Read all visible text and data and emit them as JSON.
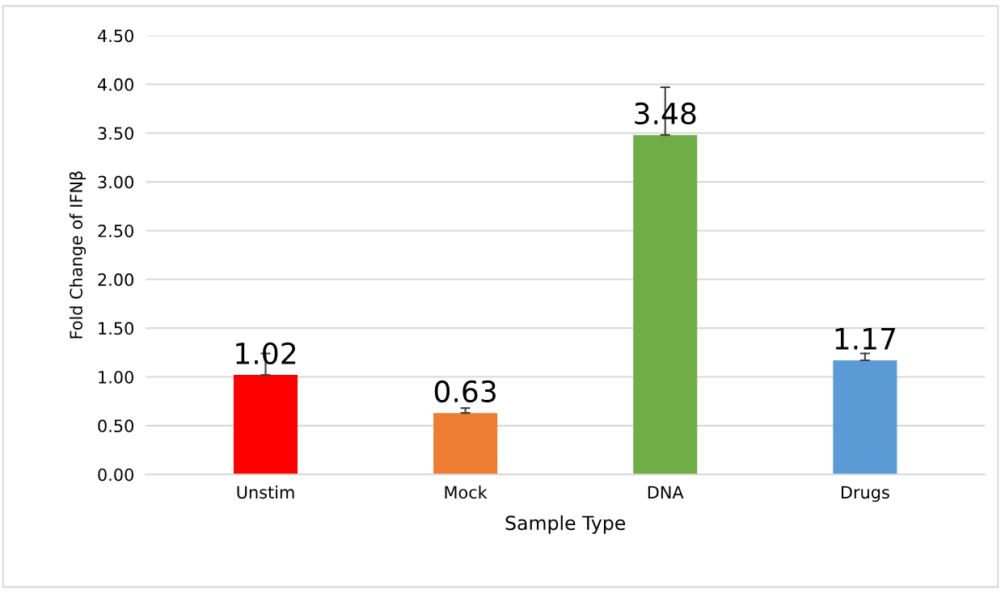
{
  "chart_data": {
    "type": "bar",
    "xlabel": "Sample Type",
    "ylabel": "Fold Change of IFNβ",
    "categories": [
      "Unstim",
      "Mock",
      "DNA",
      "Drugs"
    ],
    "values": [
      1.02,
      0.63,
      3.48,
      1.17
    ],
    "colors": [
      "#ff0000",
      "#ed7d31",
      "#70ad47",
      "#5b9bd5"
    ],
    "errors": [
      [
        1.02,
        1.24
      ],
      [
        0.63,
        0.68
      ],
      [
        3.48,
        3.97
      ],
      [
        1.17,
        1.24
      ]
    ],
    "data_labels": true,
    "grid": "y",
    "legend": false,
    "ylim": [
      0,
      4.5
    ],
    "yticks": [
      {
        "value": 0,
        "label": "0.00"
      },
      {
        "value": 0.5,
        "label": "0.50"
      },
      {
        "value": 1,
        "label": "1.00"
      },
      {
        "value": 1.5,
        "label": "1.50"
      },
      {
        "value": 2,
        "label": "2.00"
      },
      {
        "value": 2.5,
        "label": "2.50"
      },
      {
        "value": 3,
        "label": "3.00"
      },
      {
        "value": 3.5,
        "label": "3.50"
      },
      {
        "value": 4,
        "label": "4.00"
      },
      {
        "value": 4.5,
        "label": "4.50"
      }
    ]
  }
}
